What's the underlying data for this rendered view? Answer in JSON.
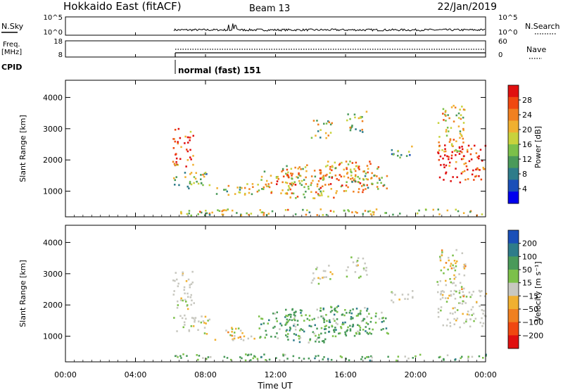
{
  "header": {
    "station": "Hokkaido East (fitACF)",
    "beam": "Beam 13",
    "date": "22/Jan/2019"
  },
  "panels": {
    "nsky": {
      "label": "N.Sky",
      "ticks": [
        "10^5",
        "10^0"
      ],
      "right_ticks": [
        "10^5",
        "10^0"
      ],
      "legend": "N.Search"
    },
    "freq": {
      "label_top": "Freq.",
      "label_bottom": "[MHz]",
      "ticks": [
        "18",
        "8"
      ],
      "right_ticks": [
        "60",
        "0"
      ],
      "legend": "Nave"
    },
    "cpid": {
      "label": "CPID",
      "mode": "normal (fast) 151"
    }
  },
  "time_axis": {
    "label": "Time UT",
    "ticks": [
      "00:00",
      "04:00",
      "08:00",
      "12:00",
      "16:00",
      "20:00",
      "00:00"
    ]
  },
  "chart_data": [
    {
      "type": "heatmap",
      "name": "power",
      "ylabel": "Slant Range [km]",
      "yticks": [
        "1000",
        "2000",
        "3000",
        "4000"
      ],
      "ylim": [
        180,
        4550
      ],
      "xlim_hours": [
        0,
        24
      ],
      "colorbar": {
        "label": "Power [dB]",
        "ticks": [
          "28",
          "24",
          "20",
          "16",
          "12",
          "8",
          "4"
        ],
        "colors": [
          "#0000ee",
          "#1a4fb8",
          "#2e7c8a",
          "#4a9a5a",
          "#7cc04a",
          "#c8d23c",
          "#f0b030",
          "#f08020",
          "#f04810",
          "#e01010"
        ]
      },
      "echo_regions": [
        {
          "t": [
            6.1,
            7.3
          ],
          "r": [
            1800,
            3100
          ],
          "level": 0.85
        },
        {
          "t": [
            6.1,
            8.2
          ],
          "r": [
            1100,
            1700
          ],
          "level": 0.45
        },
        {
          "t": [
            8.5,
            11.0
          ],
          "r": [
            900,
            1300
          ],
          "level": 0.5
        },
        {
          "t": [
            11.0,
            13.5
          ],
          "r": [
            950,
            1800
          ],
          "level": 0.65
        },
        {
          "t": [
            12.5,
            15.5
          ],
          "r": [
            800,
            1900
          ],
          "level": 0.6
        },
        {
          "t": [
            14.5,
            17.5
          ],
          "r": [
            1000,
            2000
          ],
          "level": 0.7
        },
        {
          "t": [
            16.0,
            18.5
          ],
          "r": [
            1100,
            1800
          ],
          "level": 0.55
        },
        {
          "t": [
            14.0,
            15.2
          ],
          "r": [
            2700,
            3300
          ],
          "level": 0.5
        },
        {
          "t": [
            16.0,
            17.2
          ],
          "r": [
            2900,
            3600
          ],
          "level": 0.5
        },
        {
          "t": [
            18.5,
            19.8
          ],
          "r": [
            2100,
            2500
          ],
          "level": 0.35
        },
        {
          "t": [
            21.2,
            24.0
          ],
          "r": [
            1300,
            2500
          ],
          "level": 0.9
        },
        {
          "t": [
            21.2,
            22.8
          ],
          "r": [
            2300,
            3800
          ],
          "level": 0.6
        },
        {
          "t": [
            6.2,
            24.0
          ],
          "r": [
            250,
            450
          ],
          "level": 0.55
        }
      ]
    },
    {
      "type": "heatmap",
      "name": "velocity",
      "ylabel": "Slant Range [km]",
      "yticks": [
        "1000",
        "2000",
        "3000",
        "4000"
      ],
      "ylim": [
        180,
        4550
      ],
      "xlim_hours": [
        0,
        24
      ],
      "colorbar": {
        "label": "Velocity [m s⁻¹]",
        "ticks": [
          "200",
          "100",
          "50",
          "15",
          "−15",
          "−50",
          "−100",
          "−200"
        ],
        "colors": [
          "#e01010",
          "#f04810",
          "#f08020",
          "#f0b030",
          "#c8c8c0",
          "#7cc04a",
          "#4a9a5a",
          "#2e7c8a",
          "#1a4fb8"
        ]
      },
      "echo_regions": [
        {
          "t": [
            6.1,
            7.3
          ],
          "r": [
            1800,
            3100
          ],
          "kind": "grey"
        },
        {
          "t": [
            6.1,
            8.2
          ],
          "r": [
            1100,
            1700
          ],
          "kind": "grey"
        },
        {
          "t": [
            8.5,
            11.0
          ],
          "r": [
            900,
            1300
          ],
          "kind": "mixed"
        },
        {
          "t": [
            11.0,
            13.5
          ],
          "r": [
            950,
            1800
          ],
          "kind": "green"
        },
        {
          "t": [
            12.5,
            15.5
          ],
          "r": [
            800,
            1900
          ],
          "kind": "green"
        },
        {
          "t": [
            14.5,
            17.5
          ],
          "r": [
            1000,
            2000
          ],
          "kind": "green"
        },
        {
          "t": [
            16.0,
            18.5
          ],
          "r": [
            1100,
            1800
          ],
          "kind": "green"
        },
        {
          "t": [
            14.0,
            15.2
          ],
          "r": [
            2700,
            3300
          ],
          "kind": "grey"
        },
        {
          "t": [
            16.0,
            17.2
          ],
          "r": [
            2900,
            3600
          ],
          "kind": "grey"
        },
        {
          "t": [
            18.5,
            19.8
          ],
          "r": [
            2100,
            2500
          ],
          "kind": "grey"
        },
        {
          "t": [
            21.2,
            24.0
          ],
          "r": [
            1300,
            2500
          ],
          "kind": "grey"
        },
        {
          "t": [
            21.2,
            22.8
          ],
          "r": [
            2300,
            3800
          ],
          "kind": "mixed"
        },
        {
          "t": [
            6.2,
            24.0
          ],
          "r": [
            250,
            450
          ],
          "kind": "green"
        }
      ]
    }
  ]
}
